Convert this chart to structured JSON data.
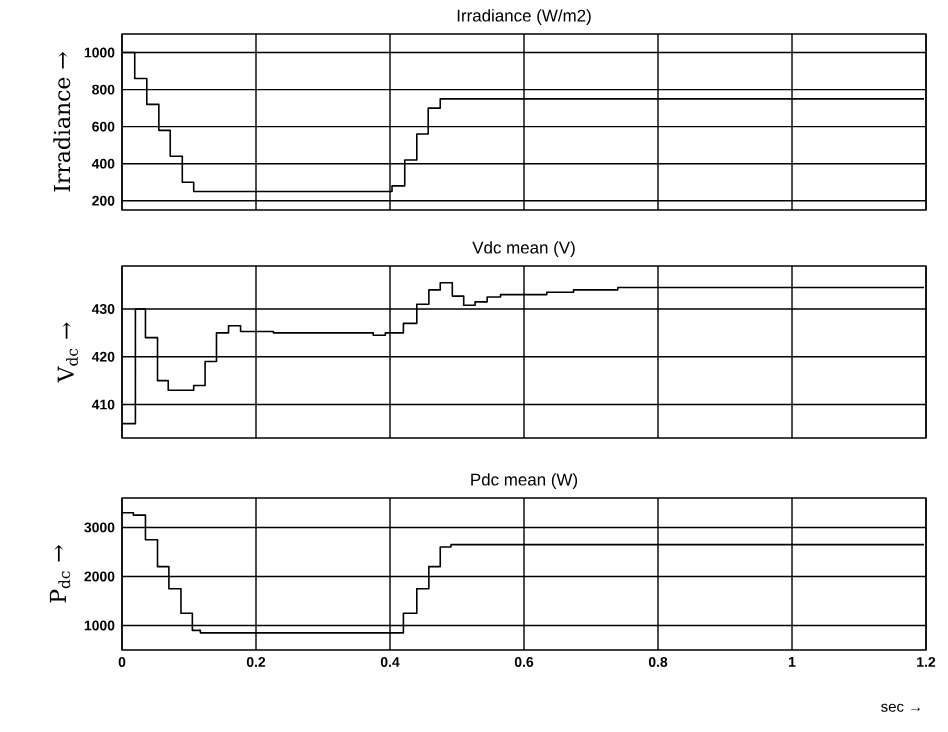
{
  "chart_data": [
    {
      "type": "step",
      "title": "Irradiance (W/m2)",
      "ylabel": "Irradiance →",
      "x": [
        0,
        0.019,
        0.037,
        0.055,
        0.072,
        0.09,
        0.107,
        0.403,
        0.422,
        0.44,
        0.457,
        0.475,
        1.197
      ],
      "values": [
        1000,
        860,
        720,
        580,
        440,
        300,
        250,
        280,
        420,
        560,
        700,
        750,
        750
      ],
      "color": "#000000",
      "xlim": [
        0,
        1.2
      ],
      "xticks": [
        0,
        0.2,
        0.4,
        0.6,
        0.8,
        1,
        1.2
      ],
      "ylim": [
        150,
        1100
      ],
      "yticks": [
        200,
        400,
        600,
        800,
        1000
      ],
      "grid": true,
      "tick_labels": "y"
    },
    {
      "type": "step",
      "title": "Vdc mean (V)",
      "ylabel": "V$_{dc}$ →",
      "x": [
        0,
        0.02,
        0.035,
        0.053,
        0.069,
        0.107,
        0.124,
        0.141,
        0.159,
        0.177,
        0.226,
        0.375,
        0.393,
        0.42,
        0.44,
        0.458,
        0.475,
        0.493,
        0.51,
        0.527,
        0.545,
        0.565,
        0.634,
        0.674,
        0.74,
        1.197
      ],
      "values": [
        406,
        430,
        424,
        415,
        413,
        414,
        419,
        425,
        426.5,
        425.3,
        425,
        424.5,
        425,
        427,
        431,
        434,
        435.5,
        432.7,
        430.8,
        431.5,
        432.5,
        433,
        433.5,
        434,
        434.5,
        434.5
      ],
      "color": "#000000",
      "xlim": [
        0,
        1.2
      ],
      "xticks": [
        0,
        0.2,
        0.4,
        0.6,
        0.8,
        1,
        1.2
      ],
      "ylim": [
        403,
        439
      ],
      "yticks": [
        410,
        420,
        430
      ],
      "grid": true,
      "tick_labels": "y"
    },
    {
      "type": "step",
      "title": "Pdc mean (W)",
      "ylabel": "P$_{dc}$ →",
      "xlabel": "sec →",
      "x": [
        0,
        0.017,
        0.035,
        0.053,
        0.07,
        0.088,
        0.105,
        0.117,
        0.42,
        0.44,
        0.458,
        0.475,
        0.491,
        1.197
      ],
      "values": [
        3300,
        3250,
        2750,
        2200,
        1750,
        1250,
        900,
        850,
        1250,
        1750,
        2200,
        2600,
        2650,
        2650
      ],
      "color": "#000000",
      "xlim": [
        0,
        1.2
      ],
      "xticks": [
        0,
        0.2,
        0.4,
        0.6,
        0.8,
        1,
        1.2
      ],
      "ylim": [
        500,
        3600
      ],
      "yticks": [
        1000,
        2000,
        3000
      ],
      "grid": true
    }
  ]
}
